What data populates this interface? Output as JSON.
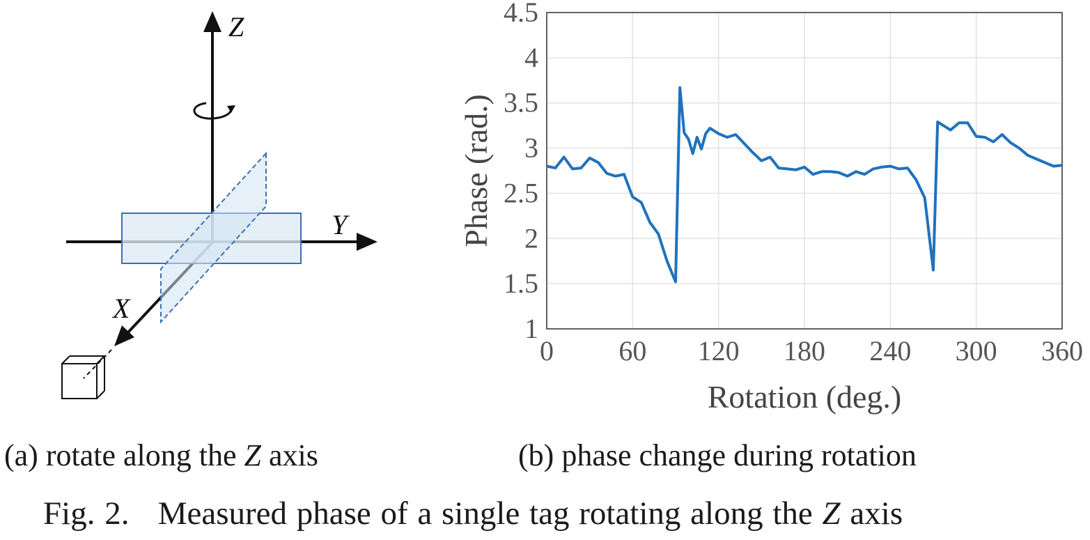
{
  "diagram": {
    "axis_z": "Z",
    "axis_y": "Y",
    "axis_x": "X",
    "colors": {
      "tag_fill": "#dceaf5",
      "tag_stroke": "#3a6fb5",
      "axis": "#111111"
    }
  },
  "captions": {
    "a_prefix": "(a)",
    "a_text": "rotate along the",
    "a_var": "Z",
    "a_suffix": "axis",
    "b_prefix": "(b)",
    "b_text": "phase change during rotation",
    "fig_label": "Fig. 2.",
    "fig_text": "Measured phase of a single tag rotating along the",
    "fig_var": "Z",
    "fig_suffix": "axis"
  },
  "chart_data": {
    "type": "line",
    "xlabel": "Rotation (deg.)",
    "ylabel": "Phase (rad.)",
    "xlim": [
      0,
      360
    ],
    "ylim": [
      1,
      4.5
    ],
    "xticks": [
      0,
      60,
      120,
      180,
      240,
      300,
      360
    ],
    "yticks": [
      1,
      1.5,
      2,
      2.5,
      3,
      3.5,
      4,
      4.5
    ],
    "grid": true,
    "line_color": "#1f72bd",
    "series": [
      {
        "x": [
          0,
          6,
          12,
          18,
          24,
          30,
          36,
          42,
          48,
          54,
          60,
          66,
          72,
          78,
          84,
          90,
          93,
          96,
          99,
          102,
          105,
          108,
          111,
          114,
          120,
          126,
          132,
          138,
          144,
          150,
          156,
          162,
          168,
          174,
          180,
          186,
          192,
          198,
          204,
          210,
          216,
          222,
          228,
          234,
          240,
          246,
          252,
          258,
          264,
          270,
          273,
          276,
          282,
          288,
          294,
          300,
          306,
          312,
          318,
          324,
          330,
          336,
          342,
          348,
          354,
          360
        ],
        "y": [
          2.8,
          2.78,
          2.9,
          2.77,
          2.78,
          2.89,
          2.84,
          2.72,
          2.69,
          2.71,
          2.46,
          2.4,
          2.18,
          2.05,
          1.75,
          1.52,
          3.67,
          3.17,
          3.1,
          2.94,
          3.12,
          2.99,
          3.16,
          3.22,
          3.16,
          3.12,
          3.15,
          3.05,
          2.95,
          2.86,
          2.9,
          2.78,
          2.77,
          2.76,
          2.79,
          2.71,
          2.74,
          2.74,
          2.73,
          2.69,
          2.74,
          2.71,
          2.77,
          2.79,
          2.8,
          2.77,
          2.78,
          2.65,
          2.45,
          1.65,
          3.29,
          3.26,
          3.2,
          3.28,
          3.28,
          3.13,
          3.12,
          3.07,
          3.15,
          3.06,
          3.0,
          2.92,
          2.88,
          2.84,
          2.8,
          2.81
        ]
      }
    ]
  }
}
